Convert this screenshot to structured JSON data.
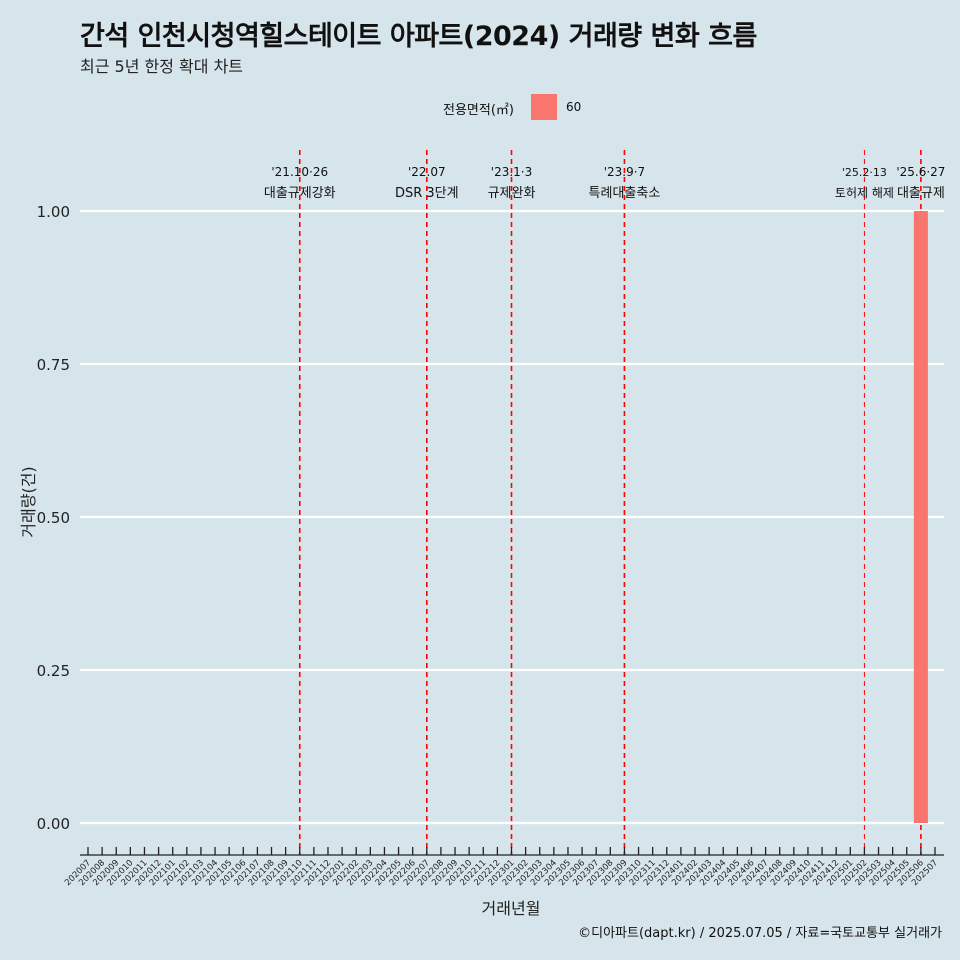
{
  "title": "간석 인천시청역힐스테이트 아파트(2024) 거래량 변화 흐름",
  "subtitle": "최근 5년 한정 확대 차트",
  "caption": "©디아파트(dapt.kr) / 2025.07.05 / 자료=국토교통부 실거래가",
  "legend": {
    "title": "전용면적(㎡)",
    "items": [
      {
        "label": "60",
        "color": "#f8766d"
      }
    ]
  },
  "colors": {
    "background": "#d6e4eb",
    "bar": "#f8766d",
    "event_line": "#ff0000",
    "grid": "#ffffff"
  },
  "chart_data": {
    "type": "bar",
    "xlabel": "거래년월",
    "ylabel": "거래량(건)",
    "ylim": [
      0,
      1
    ],
    "y_ticks": [
      "0.00",
      "0.25",
      "0.50",
      "0.75",
      "1.00"
    ],
    "grid": true,
    "legend_position": "top",
    "categories": [
      "202007",
      "202008",
      "202009",
      "202010",
      "202011",
      "202012",
      "202101",
      "202102",
      "202103",
      "202104",
      "202105",
      "202106",
      "202107",
      "202108",
      "202109",
      "202110",
      "202111",
      "202112",
      "202201",
      "202202",
      "202203",
      "202204",
      "202205",
      "202206",
      "202207",
      "202208",
      "202209",
      "202210",
      "202211",
      "202212",
      "202301",
      "202302",
      "202303",
      "202304",
      "202305",
      "202306",
      "202307",
      "202308",
      "202309",
      "202310",
      "202311",
      "202312",
      "202401",
      "202402",
      "202403",
      "202404",
      "202405",
      "202406",
      "202407",
      "202408",
      "202409",
      "202410",
      "202411",
      "202412",
      "202501",
      "202502",
      "202503",
      "202504",
      "202505",
      "202506",
      "202507"
    ],
    "series": [
      {
        "name": "60",
        "values": [
          {
            "x": "202506",
            "y": 1
          }
        ]
      }
    ],
    "events": [
      {
        "x": "202110",
        "date": "'21.10·26",
        "label": "대출규제강화"
      },
      {
        "x": "202207",
        "date": "'22.07",
        "label": "DSR 3단계"
      },
      {
        "x": "202301",
        "date": "'23.1·3",
        "label": "규제완화"
      },
      {
        "x": "202309",
        "date": "'23.9·7",
        "label": "특례대출축소"
      },
      {
        "x": "202502",
        "date": "'25.2·13",
        "label": "토허제 해제"
      },
      {
        "x": "202506",
        "date": "'25.6·27",
        "label": "대출규제"
      }
    ]
  }
}
